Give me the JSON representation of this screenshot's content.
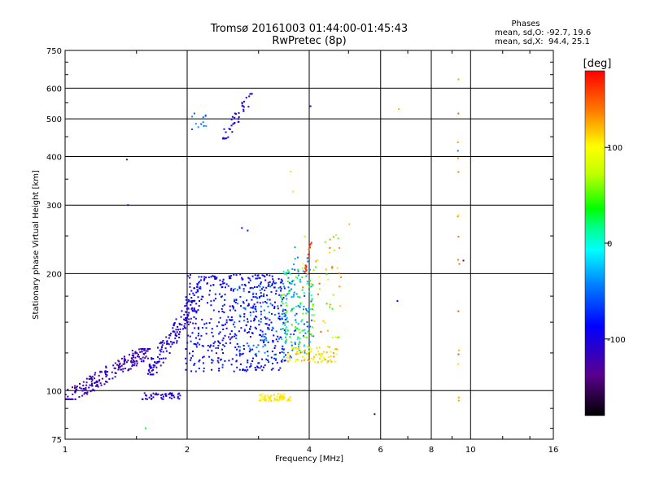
{
  "header": {
    "title_line1": "Tromsø 20161003 01:44:00-01:45:43",
    "title_line2": "RwPretec (8p)",
    "phase_title": "Phases",
    "phase_line1": "mean, sd,O: -92.7, 19.6",
    "phase_line2": "mean, sd,X:  94.4, 25.1"
  },
  "colorbar": {
    "label": "[deg]",
    "min": -180,
    "max": 180,
    "ticks": [
      100,
      0,
      -100
    ]
  },
  "chart_data": {
    "type": "scatter",
    "xlabel": "Frequency [MHz]",
    "ylabel": "Stationary phase Virtual Height [km]",
    "xscale": "log",
    "yscale": "log",
    "xlim": [
      1,
      16
    ],
    "ylim": [
      75,
      750
    ],
    "xticks": [
      1,
      2,
      4,
      6,
      8,
      10,
      16
    ],
    "yticks": [
      75,
      100,
      200,
      300,
      400,
      500,
      600,
      750
    ],
    "grid": true,
    "clusters": [
      {
        "name": "low-band trace",
        "x": [
          1.0,
          1.62
        ],
        "y": [
          95,
          128
        ],
        "phase": [
          -140,
          -100
        ],
        "points": 220,
        "trend": "up"
      },
      {
        "name": "lower trace 100km",
        "x": [
          1.55,
          1.95
        ],
        "y": [
          95,
          99
        ],
        "phase": [
          -120,
          -90
        ],
        "points": 45,
        "trend": "flat"
      },
      {
        "name": "rising trace",
        "x": [
          1.6,
          2.1
        ],
        "y": [
          110,
          170
        ],
        "phase": [
          -120,
          -90
        ],
        "points": 150,
        "trend": "up"
      },
      {
        "name": "F-layer main",
        "x": [
          1.98,
          3.5
        ],
        "y": [
          112,
          200
        ],
        "phase": [
          -110,
          -70
        ],
        "points": 520,
        "trend": "random"
      },
      {
        "name": "F-layer cyan",
        "x": [
          2.6,
          3.8
        ],
        "y": [
          120,
          190
        ],
        "phase": [
          -55,
          -30
        ],
        "points": 90,
        "trend": "random"
      },
      {
        "name": "mid trace",
        "x": [
          3.4,
          4.1
        ],
        "y": [
          125,
          205
        ],
        "phase": [
          -70,
          60
        ],
        "points": 140,
        "trend": "random"
      },
      {
        "name": "X-mode band 125km",
        "x": [
          3.5,
          4.7
        ],
        "y": [
          118,
          130
        ],
        "phase": [
          80,
          130
        ],
        "points": 80,
        "trend": "flat"
      },
      {
        "name": "X-mode 97km",
        "x": [
          3.0,
          3.6
        ],
        "y": [
          94,
          98
        ],
        "phase": [
          100,
          115
        ],
        "points": 60,
        "trend": "flat"
      },
      {
        "name": "upper cusp",
        "x": [
          3.85,
          4.8
        ],
        "y": [
          135,
          260
        ],
        "phase": [
          40,
          150
        ],
        "points": 55,
        "trend": "random"
      },
      {
        "name": "upper cusp cyan",
        "x": [
          3.5,
          4.05
        ],
        "y": [
          160,
          245
        ],
        "phase": [
          -50,
          -25
        ],
        "points": 30,
        "trend": "random"
      },
      {
        "name": "red rising",
        "x": [
          3.9,
          4.05
        ],
        "y": [
          200,
          240
        ],
        "phase": [
          150,
          175
        ],
        "points": 14,
        "trend": "up"
      },
      {
        "name": "high echo 500km",
        "x": [
          2.45,
          2.9
        ],
        "y": [
          445,
          580
        ],
        "phase": [
          -110,
          -90
        ],
        "points": 40,
        "trend": "up"
      },
      {
        "name": "high echo scatter",
        "x": [
          2.05,
          2.25
        ],
        "y": [
          470,
          520
        ],
        "phase": [
          -70,
          -30
        ],
        "points": 12,
        "trend": "random"
      },
      {
        "name": "interference 9.3MHz",
        "x": [
          9.3,
          9.4
        ],
        "y": [
          80,
          640
        ],
        "phase": [
          95,
          150
        ],
        "points": 10,
        "trend": "vertical"
      }
    ],
    "isolated_points": [
      {
        "x": 1.42,
        "y": 393,
        "phase": -120
      },
      {
        "x": 1.43,
        "y": 300,
        "phase": -110
      },
      {
        "x": 1.58,
        "y": 80,
        "phase": 30
      },
      {
        "x": 2.3,
        "y": 120,
        "phase": -90
      },
      {
        "x": 2.82,
        "y": 258,
        "phase": -80
      },
      {
        "x": 2.73,
        "y": 262,
        "phase": -80
      },
      {
        "x": 3.6,
        "y": 366,
        "phase": 110
      },
      {
        "x": 3.65,
        "y": 325,
        "phase": 110
      },
      {
        "x": 4.03,
        "y": 539,
        "phase": -100
      },
      {
        "x": 5.02,
        "y": 268,
        "phase": 120
      },
      {
        "x": 5.8,
        "y": 87,
        "phase": -150
      },
      {
        "x": 6.65,
        "y": 530,
        "phase": 120
      },
      {
        "x": 6.6,
        "y": 170,
        "phase": -90
      },
      {
        "x": 9.34,
        "y": 632,
        "phase": 130
      },
      {
        "x": 9.33,
        "y": 516,
        "phase": 150
      },
      {
        "x": 9.31,
        "y": 414,
        "phase": -45
      },
      {
        "x": 9.32,
        "y": 396,
        "phase": 130
      },
      {
        "x": 9.33,
        "y": 365,
        "phase": 140
      },
      {
        "x": 9.32,
        "y": 217,
        "phase": 140
      },
      {
        "x": 9.33,
        "y": 160,
        "phase": 150
      },
      {
        "x": 9.34,
        "y": 124,
        "phase": 155
      },
      {
        "x": 9.6,
        "y": 216,
        "phase": -140
      }
    ]
  }
}
